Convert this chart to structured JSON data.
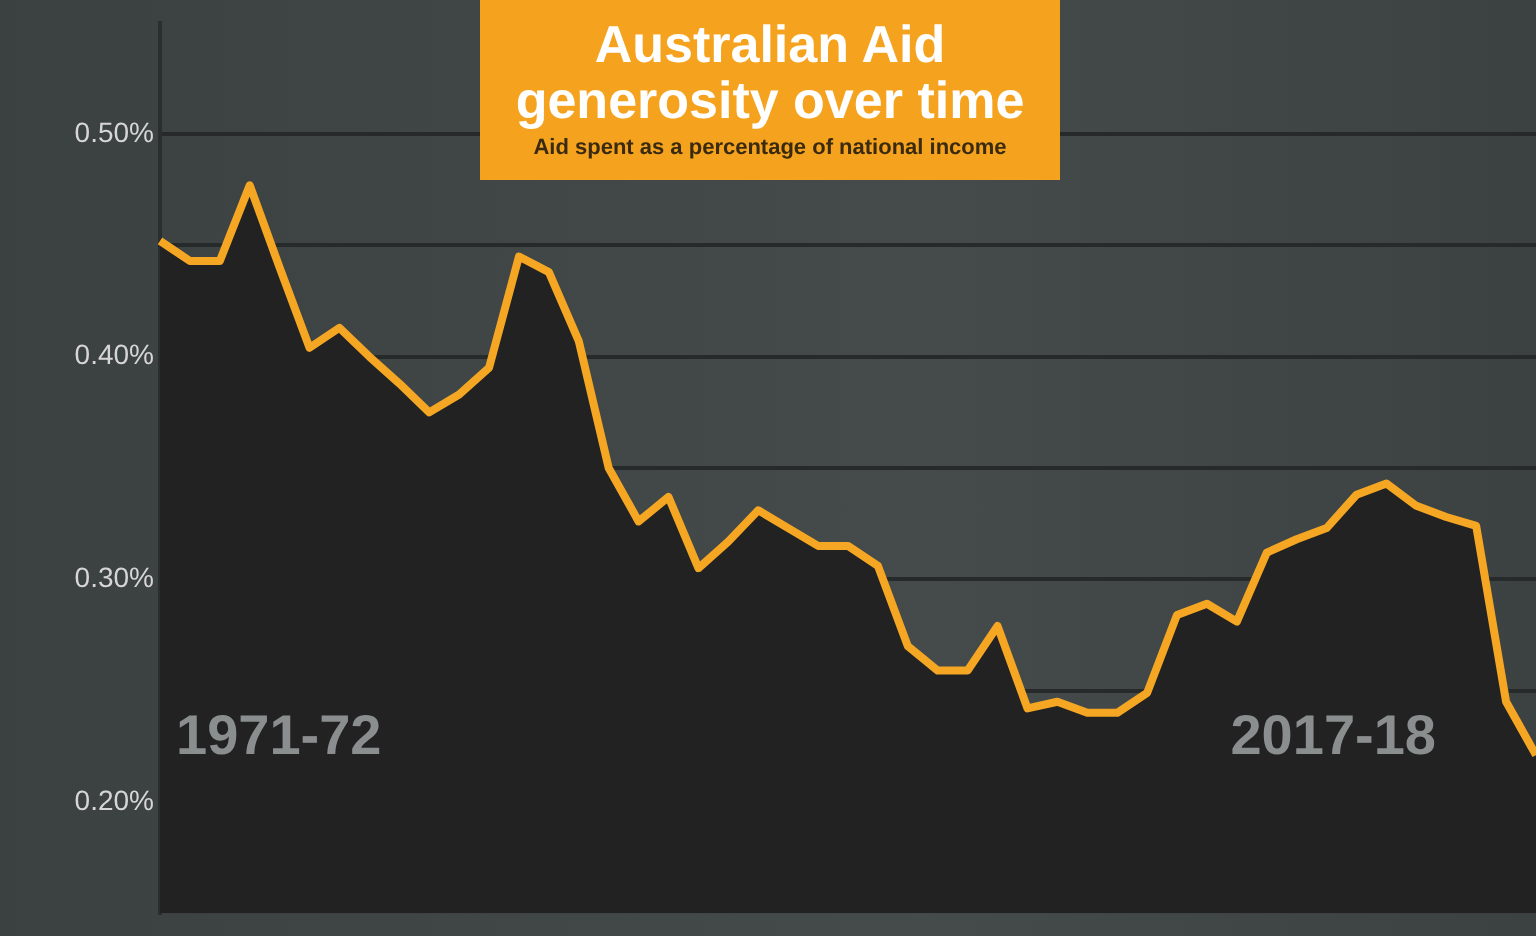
{
  "chart_data": {
    "type": "area",
    "title": "Australian Aid\ngenerosity over time",
    "subtitle": "Aid spent as a percentage of national income",
    "categories": [
      null,
      null,
      null,
      null,
      null,
      null,
      null,
      null,
      null,
      null,
      null,
      null,
      null,
      null,
      null,
      null,
      null,
      null,
      null,
      null,
      null,
      null,
      null,
      null,
      null,
      null,
      null,
      null,
      null,
      null,
      null,
      null,
      null,
      null,
      null,
      null,
      null,
      null,
      null,
      null,
      null,
      null,
      null,
      null,
      null,
      null,
      null
    ],
    "series": [
      {
        "color": "#f5a623",
        "values": [
          0.452,
          0.443,
          0.443,
          0.477,
          0.44,
          0.404,
          0.413,
          0.4,
          0.388,
          0.375,
          0.383,
          0.395,
          0.445,
          0.438,
          0.407,
          0.35,
          0.326,
          0.337,
          0.305,
          0.317,
          0.331,
          0.323,
          0.315,
          0.315,
          0.306,
          0.27,
          0.259,
          0.259,
          0.279,
          0.242,
          0.245,
          0.24,
          0.24,
          0.249,
          0.284,
          0.289,
          0.281,
          0.312,
          0.318,
          0.323,
          0.338,
          0.343,
          0.333,
          0.328,
          0.324,
          0.245,
          0.221
        ]
      }
    ],
    "ylim": [
      0.15,
      0.55
    ],
    "yticks": [
      {
        "value": 0.2,
        "label": "0.20%"
      },
      {
        "value": 0.25,
        "label": null
      },
      {
        "value": 0.3,
        "label": "0.30%"
      },
      {
        "value": 0.35,
        "label": null
      },
      {
        "value": 0.4,
        "label": "0.40%"
      },
      {
        "value": 0.45,
        "label": null
      },
      {
        "value": 0.5,
        "label": "0.50%"
      }
    ],
    "grid": "y",
    "tick_labels": "y",
    "annotations": [
      "1971-72",
      "2017-18"
    ]
  }
}
